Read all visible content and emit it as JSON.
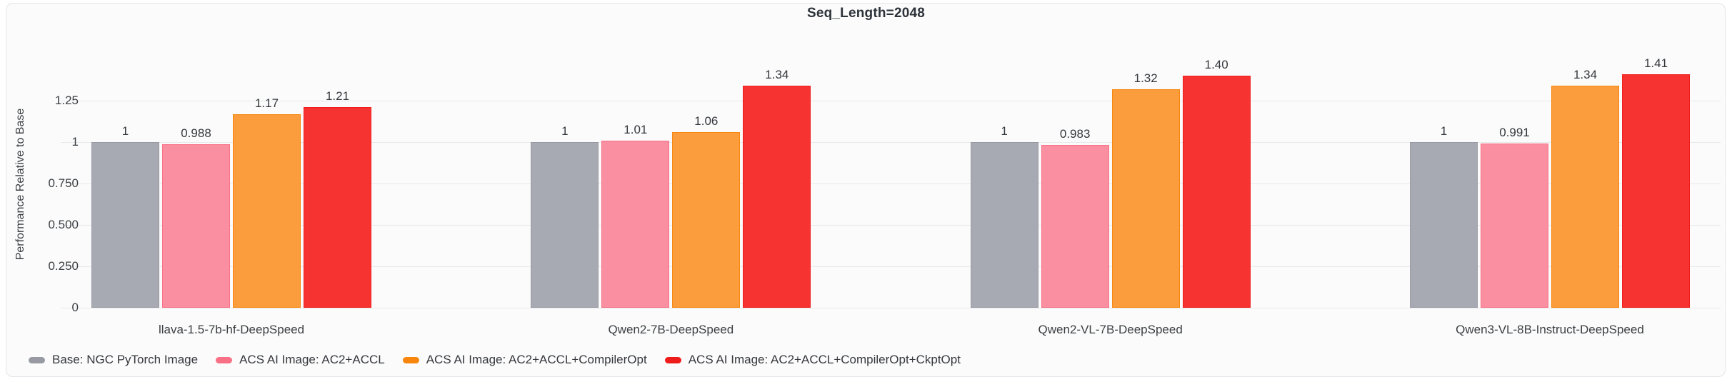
{
  "chart_data": {
    "type": "bar",
    "title": "Seq_Length=2048",
    "xlabel": "",
    "ylabel": "Performance Relative to Base",
    "ylim": [
      0,
      1.55
    ],
    "grid": true,
    "legend_position": "bottom-left",
    "yticks": {
      "values": [
        0,
        0.25,
        0.5,
        0.75,
        1,
        1.25
      ],
      "labels": [
        "0",
        "0.250",
        "0.500",
        "0.750",
        "1",
        "1.25"
      ]
    },
    "categories": [
      "llava-1.5-7b-hf-DeepSpeed",
      "Qwen2-7B-DeepSpeed",
      "Qwen2-VL-7B-DeepSpeed",
      "Qwen3-VL-8B-Instruct-DeepSpeed"
    ],
    "series": [
      {
        "name": "Base: NGC PyTorch Image",
        "color": "#a7aab2",
        "edge_color": "#979aa3",
        "values": [
          1,
          1,
          1,
          1
        ],
        "value_labels": [
          "1",
          "1",
          "1",
          "1"
        ]
      },
      {
        "name": "ACS AI Image: AC2+ACCL",
        "color": "#fa8fa1",
        "edge_color": "#f87085",
        "values": [
          0.988,
          1.01,
          0.983,
          0.991
        ],
        "value_labels": [
          "0.988",
          "1.01",
          "0.983",
          "0.991"
        ]
      },
      {
        "name": "ACS AI Image: AC2+ACCL+CompilerOpt",
        "color": "#fb9d3d",
        "edge_color": "#f8860d",
        "values": [
          1.17,
          1.06,
          1.32,
          1.34
        ],
        "value_labels": [
          "1.17",
          "1.06",
          "1.32",
          "1.34"
        ]
      },
      {
        "name": "ACS AI Image: AC2+ACCL+CompilerOpt+CkptOpt",
        "color": "#f73331",
        "edge_color": "#ee1d1b",
        "values": [
          1.21,
          1.34,
          1.4,
          1.41
        ],
        "value_labels": [
          "1.21",
          "1.34",
          "1.40",
          "1.41"
        ]
      }
    ]
  }
}
